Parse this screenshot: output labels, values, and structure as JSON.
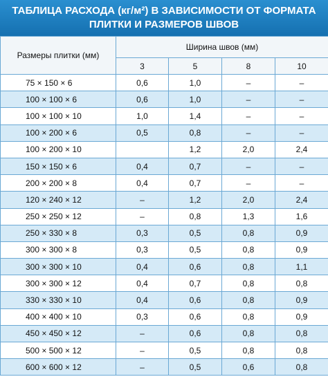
{
  "title": {
    "lines": [
      "ТАБЛИЦА РАСХОДА (кг/м²) В ЗАВИСИМОСТИ ОТ ФОРМАТА",
      "ПЛИТКИ И РАЗМЕРОВ ШВОВ"
    ]
  },
  "table": {
    "row_header": "Размеры плитки (мм)",
    "group_header": "Ширина швов (мм)",
    "columns": [
      "3",
      "5",
      "8",
      "10"
    ],
    "rows": [
      [
        "75 × 150 × 6",
        "0,6",
        "1,0",
        "–",
        "–"
      ],
      [
        "100 × 100 × 6",
        "0,6",
        "1,0",
        "–",
        "–"
      ],
      [
        "100 × 100 × 10",
        "1,0",
        "1,4",
        "–",
        "–"
      ],
      [
        "100 × 200 × 6",
        "0,5",
        "0,8",
        "–",
        "–"
      ],
      [
        "100 × 200 × 10",
        null,
        "1,2",
        "2,0",
        "2,4"
      ],
      [
        "150 × 150 × 6",
        "0,4",
        "0,7",
        "–",
        "–"
      ],
      [
        "200 × 200 × 8",
        "0,4",
        "0,7",
        "–",
        "–"
      ],
      [
        "120 × 240 × 12",
        "–",
        "1,2",
        "2,0",
        "2,4"
      ],
      [
        "250 × 250 × 12",
        "–",
        "0,8",
        "1,3",
        "1,6"
      ],
      [
        "250 × 330 × 8",
        "0,3",
        "0,5",
        "0,8",
        "0,9"
      ],
      [
        "300 × 300 × 8",
        "0,3",
        "0,5",
        "0,8",
        "0,9"
      ],
      [
        "300 × 300 × 10",
        "0,4",
        "0,6",
        "0,8",
        "1,1"
      ],
      [
        "300 × 300 × 12",
        "0,4",
        "0,7",
        "0,8",
        "0,8"
      ],
      [
        "330 × 330 × 10",
        "0,4",
        "0,6",
        "0,8",
        "0,9"
      ],
      [
        "400 × 400 × 10",
        "0,3",
        "0,6",
        "0,8",
        "0,9"
      ],
      [
        "450 × 450 × 12",
        "–",
        "0,6",
        "0,8",
        "0,8"
      ],
      [
        "500 × 500 × 12",
        "–",
        "0,5",
        "0,8",
        "0,8"
      ],
      [
        "600 × 600 × 12",
        "–",
        "0,5",
        "0,6",
        "0,8"
      ]
    ]
  }
}
